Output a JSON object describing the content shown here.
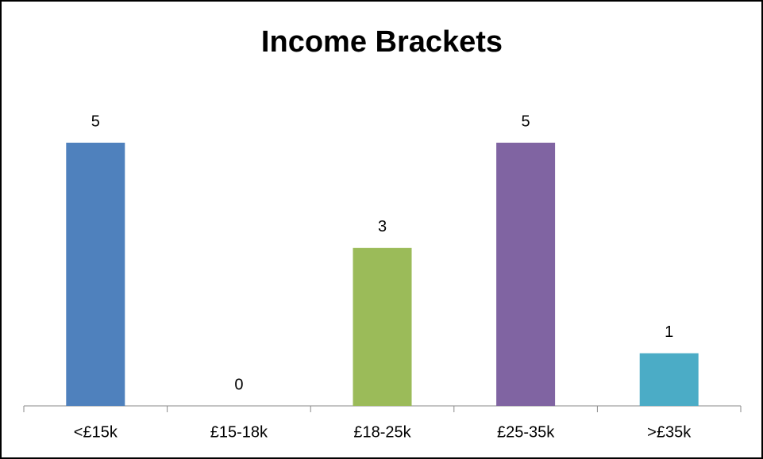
{
  "chart_data": {
    "type": "bar",
    "title": "Income Brackets",
    "categories": [
      "<£15k",
      "£15-18k",
      "£18-25k",
      "£25-35k",
      ">£35k"
    ],
    "values": [
      5,
      0,
      3,
      5,
      1
    ],
    "colors": [
      "#4f81bd",
      "#c0504d",
      "#9bbb59",
      "#8064a2",
      "#4bacc6"
    ]
  }
}
